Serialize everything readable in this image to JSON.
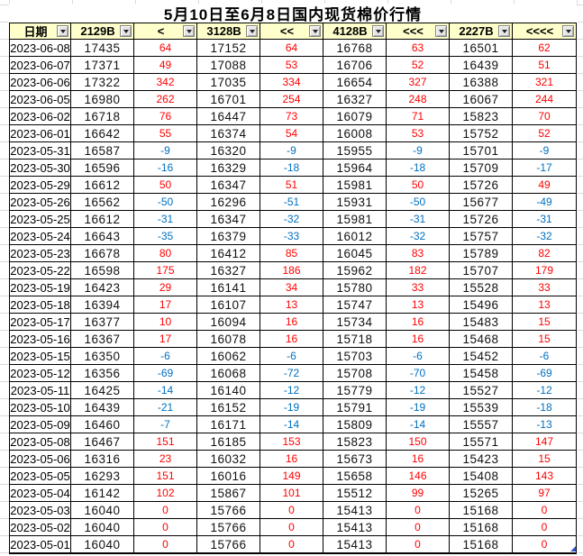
{
  "title": "5月10日至6月8日国内现货棉价行情",
  "colors": {
    "positive": "#ff0000",
    "negative": "#0070c0",
    "header_bg": "#ffffcc",
    "corner_marker": "#3355cc"
  },
  "icons": {
    "filter_dropdown": "chevron-down"
  },
  "table": {
    "columns": [
      "日期",
      "2129B",
      "<",
      "3128B",
      "<<",
      "4128B",
      "<<<",
      "2227B",
      "<<<<"
    ],
    "rows": [
      [
        "2023-06-08",
        "17435",
        "64",
        "17152",
        "64",
        "16768",
        "63",
        "16501",
        "62"
      ],
      [
        "2023-06-07",
        "17371",
        "49",
        "17088",
        "53",
        "16706",
        "52",
        "16439",
        "51"
      ],
      [
        "2023-06-06",
        "17322",
        "342",
        "17035",
        "334",
        "16654",
        "327",
        "16388",
        "321"
      ],
      [
        "2023-06-05",
        "16980",
        "262",
        "16701",
        "254",
        "16327",
        "248",
        "16067",
        "244"
      ],
      [
        "2023-06-02",
        "16718",
        "76",
        "16447",
        "73",
        "16079",
        "71",
        "15823",
        "70"
      ],
      [
        "2023-06-01",
        "16642",
        "55",
        "16374",
        "54",
        "16008",
        "53",
        "15752",
        "52"
      ],
      [
        "2023-05-31",
        "16587",
        "-9",
        "16320",
        "-9",
        "15955",
        "-9",
        "15701",
        "-9"
      ],
      [
        "2023-05-30",
        "16596",
        "-16",
        "16329",
        "-18",
        "15964",
        "-18",
        "15709",
        "-17"
      ],
      [
        "2023-05-29",
        "16612",
        "50",
        "16347",
        "51",
        "15981",
        "50",
        "15726",
        "49"
      ],
      [
        "2023-05-26",
        "16562",
        "-50",
        "16296",
        "-51",
        "15931",
        "-50",
        "15677",
        "-49"
      ],
      [
        "2023-05-25",
        "16612",
        "-31",
        "16347",
        "-32",
        "15981",
        "-31",
        "15726",
        "-31"
      ],
      [
        "2023-05-24",
        "16643",
        "-35",
        "16379",
        "-33",
        "16012",
        "-32",
        "15757",
        "-32"
      ],
      [
        "2023-05-23",
        "16678",
        "80",
        "16412",
        "85",
        "16045",
        "83",
        "15789",
        "82"
      ],
      [
        "2023-05-22",
        "16598",
        "175",
        "16327",
        "186",
        "15962",
        "182",
        "15707",
        "179"
      ],
      [
        "2023-05-19",
        "16423",
        "29",
        "16141",
        "34",
        "15780",
        "33",
        "15528",
        "33"
      ],
      [
        "2023-05-18",
        "16394",
        "17",
        "16107",
        "13",
        "15747",
        "13",
        "15496",
        "13"
      ],
      [
        "2023-05-17",
        "16377",
        "10",
        "16094",
        "16",
        "15734",
        "16",
        "15483",
        "15"
      ],
      [
        "2023-05-16",
        "16367",
        "17",
        "16078",
        "16",
        "15718",
        "16",
        "15468",
        "15"
      ],
      [
        "2023-05-15",
        "16350",
        "-6",
        "16062",
        "-6",
        "15703",
        "-6",
        "15452",
        "-6"
      ],
      [
        "2023-05-12",
        "16356",
        "-69",
        "16068",
        "-72",
        "15708",
        "-70",
        "15458",
        "-69"
      ],
      [
        "2023-05-11",
        "16425",
        "-14",
        "16140",
        "-12",
        "15779",
        "-12",
        "15527",
        "-12"
      ],
      [
        "2023-05-10",
        "16439",
        "-21",
        "16152",
        "-19",
        "15791",
        "-19",
        "15539",
        "-18"
      ],
      [
        "2023-05-09",
        "16460",
        "-7",
        "16171",
        "-14",
        "15809",
        "-14",
        "15557",
        "-13"
      ],
      [
        "2023-05-08",
        "16467",
        "151",
        "16185",
        "153",
        "15823",
        "150",
        "15571",
        "147"
      ],
      [
        "2023-05-06",
        "16316",
        "23",
        "16032",
        "16",
        "15673",
        "16",
        "15423",
        "15"
      ],
      [
        "2023-05-05",
        "16293",
        "151",
        "16016",
        "149",
        "15658",
        "146",
        "15408",
        "143"
      ],
      [
        "2023-05-04",
        "16142",
        "102",
        "15867",
        "101",
        "15512",
        "99",
        "15265",
        "97"
      ],
      [
        "2023-05-03",
        "16040",
        "0",
        "15766",
        "0",
        "15413",
        "0",
        "15168",
        "0"
      ],
      [
        "2023-05-02",
        "16040",
        "0",
        "15766",
        "0",
        "15413",
        "0",
        "15168",
        "0"
      ],
      [
        "2023-05-01",
        "16040",
        "0",
        "15766",
        "0",
        "15413",
        "0",
        "15168",
        "0"
      ]
    ]
  }
}
